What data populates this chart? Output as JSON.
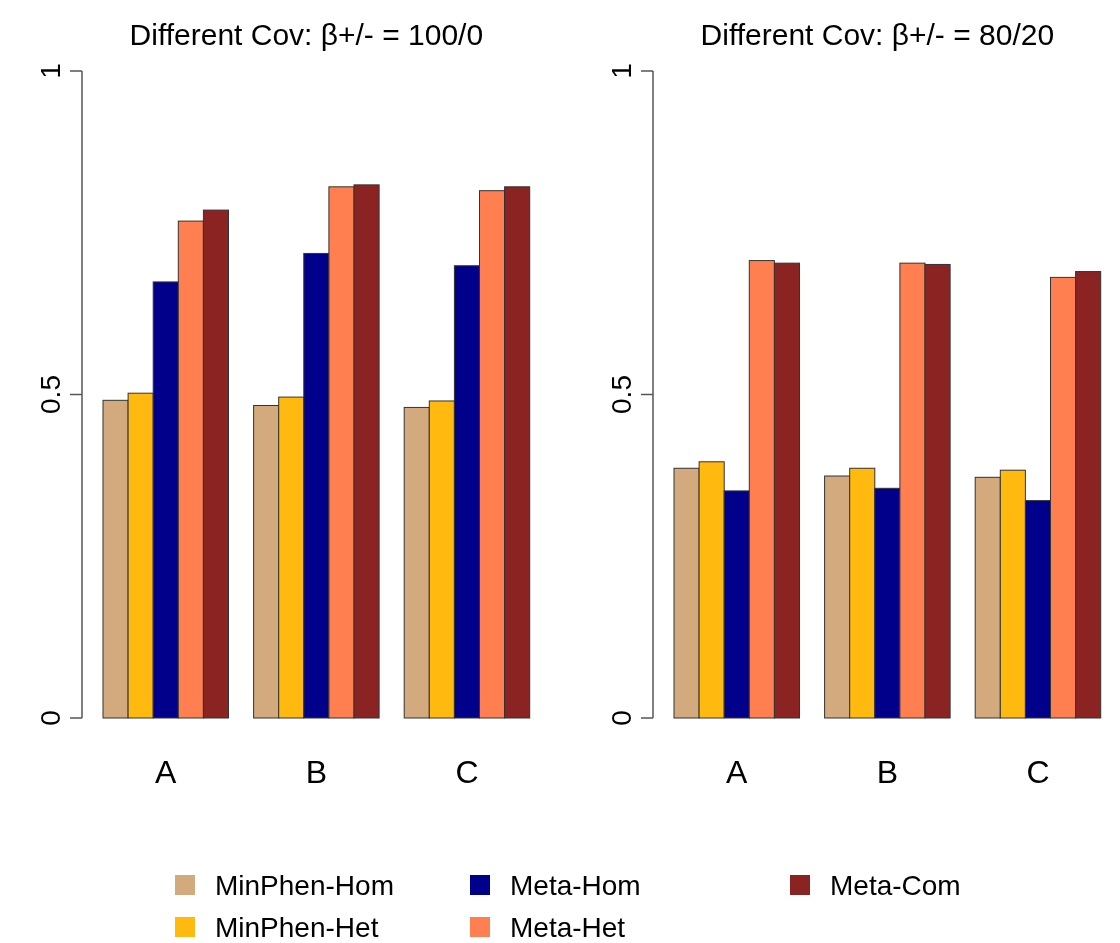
{
  "chart_data": [
    {
      "type": "bar",
      "title": "Different Cov: β+/- = 100/0",
      "categories": [
        "A",
        "B",
        "C"
      ],
      "series": [
        {
          "name": "MinPhen-Hom",
          "color": "#d2aa7d",
          "values": [
            0.491,
            0.483,
            0.48
          ]
        },
        {
          "name": "MinPhen-Het",
          "color": "#ffb90f",
          "values": [
            0.502,
            0.496,
            0.49
          ]
        },
        {
          "name": "Meta-Hom",
          "color": "#00008b",
          "values": [
            0.674,
            0.718,
            0.699
          ]
        },
        {
          "name": "Meta-Het",
          "color": "#ff7f50",
          "values": [
            0.768,
            0.821,
            0.815
          ]
        },
        {
          "name": "Meta-Com",
          "color": "#8b2323",
          "values": [
            0.785,
            0.824,
            0.821
          ]
        }
      ],
      "ylim": [
        0,
        1
      ],
      "yticks": [
        0,
        0.5,
        1
      ],
      "grid": false,
      "legend": "bottom"
    },
    {
      "type": "bar",
      "title": "Different Cov: β+/- = 80/20",
      "categories": [
        "A",
        "B",
        "C"
      ],
      "series": [
        {
          "color": "#d2aa7d",
          "values": [
            0.386,
            0.374,
            0.372
          ]
        },
        {
          "color": "#ffb90f",
          "values": [
            0.396,
            0.386,
            0.383
          ]
        },
        {
          "color": "#00008b",
          "values": [
            0.351,
            0.355,
            0.336
          ]
        },
        {
          "color": "#ff7f50",
          "values": [
            0.707,
            0.703,
            0.681
          ]
        },
        {
          "color": "#8b2323",
          "values": [
            0.703,
            0.701,
            0.69
          ]
        }
      ],
      "ylim": [
        0,
        1
      ],
      "yticks": [
        0,
        0.5,
        1
      ],
      "grid": false
    }
  ]
}
